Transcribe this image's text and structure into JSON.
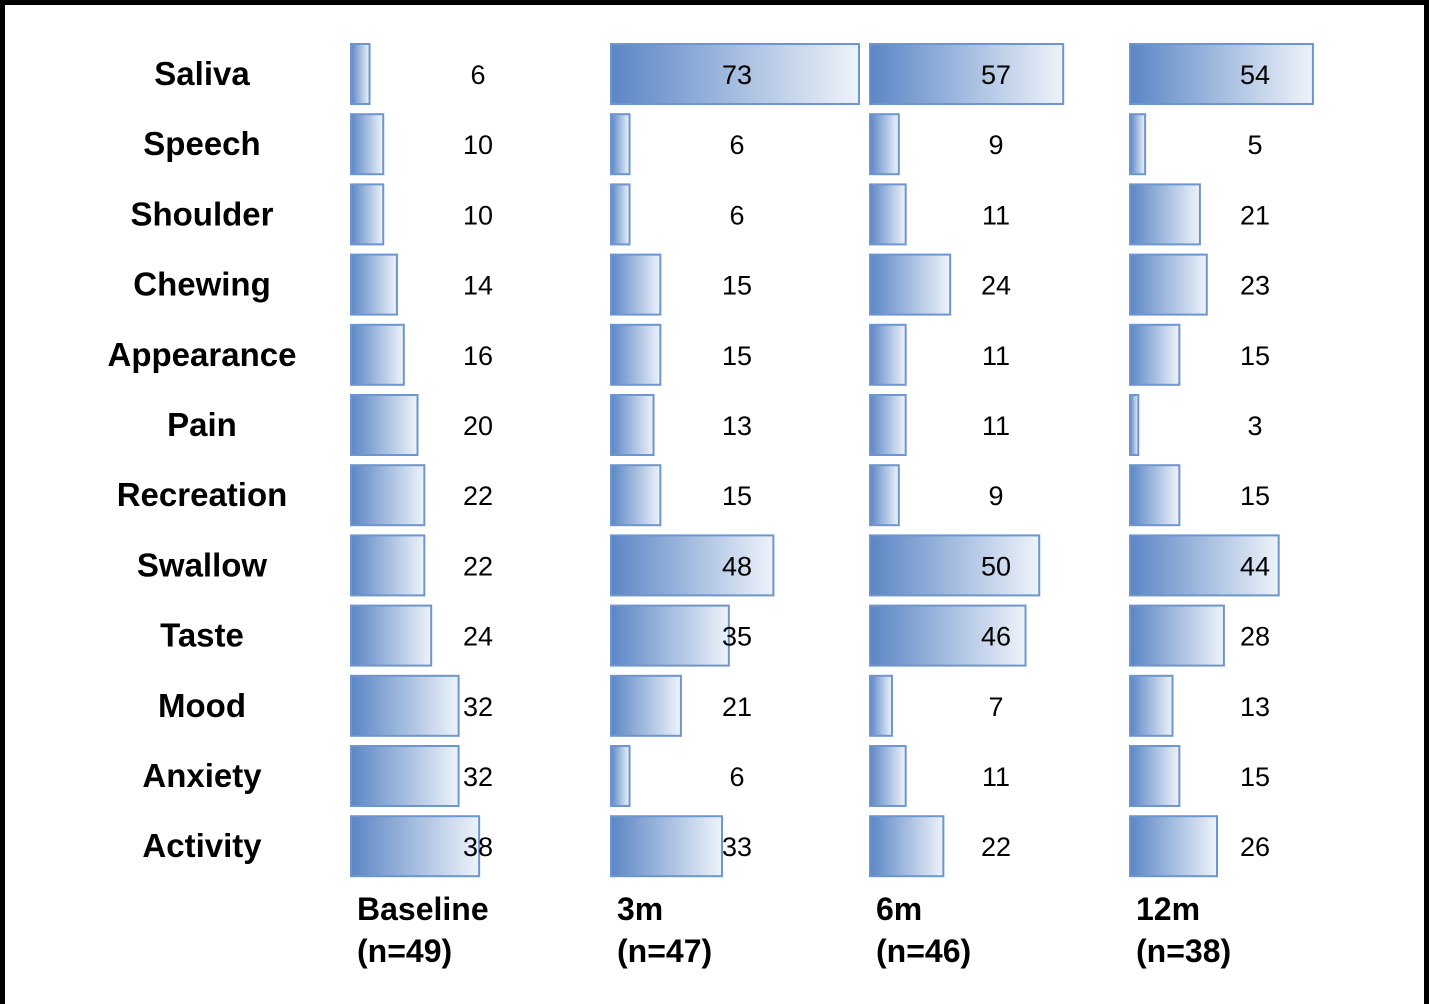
{
  "chart_data": {
    "type": "bar",
    "orientation": "horizontal",
    "title": "",
    "categories": [
      "Saliva",
      "Speech",
      "Shoulder",
      "Chewing",
      "Appearance",
      "Pain",
      "Recreation",
      "Swallow",
      "Taste",
      "Mood",
      "Anxiety",
      "Activity"
    ],
    "series": [
      {
        "name_line1": "Baseline",
        "name_line2": "(n=49)",
        "values": [
          6,
          10,
          10,
          14,
          16,
          20,
          22,
          22,
          24,
          32,
          32,
          38
        ]
      },
      {
        "name_line1": "3m",
        "name_line2": "(n=47)",
        "values": [
          73,
          6,
          6,
          15,
          15,
          13,
          15,
          48,
          35,
          21,
          6,
          33
        ]
      },
      {
        "name_line1": "6m",
        "name_line2": "(n=46)",
        "values": [
          57,
          9,
          11,
          24,
          11,
          11,
          9,
          50,
          46,
          7,
          11,
          22
        ]
      },
      {
        "name_line1": "12m",
        "name_line2": "(n=38)",
        "values": [
          54,
          5,
          21,
          23,
          15,
          3,
          15,
          44,
          28,
          13,
          15,
          26
        ]
      }
    ],
    "xlim": [
      0,
      73
    ],
    "bar_gradient": [
      "#5b86c5",
      "#eef3fa"
    ],
    "bar_border": "#6d95cf",
    "grid": false,
    "legend": "none"
  }
}
